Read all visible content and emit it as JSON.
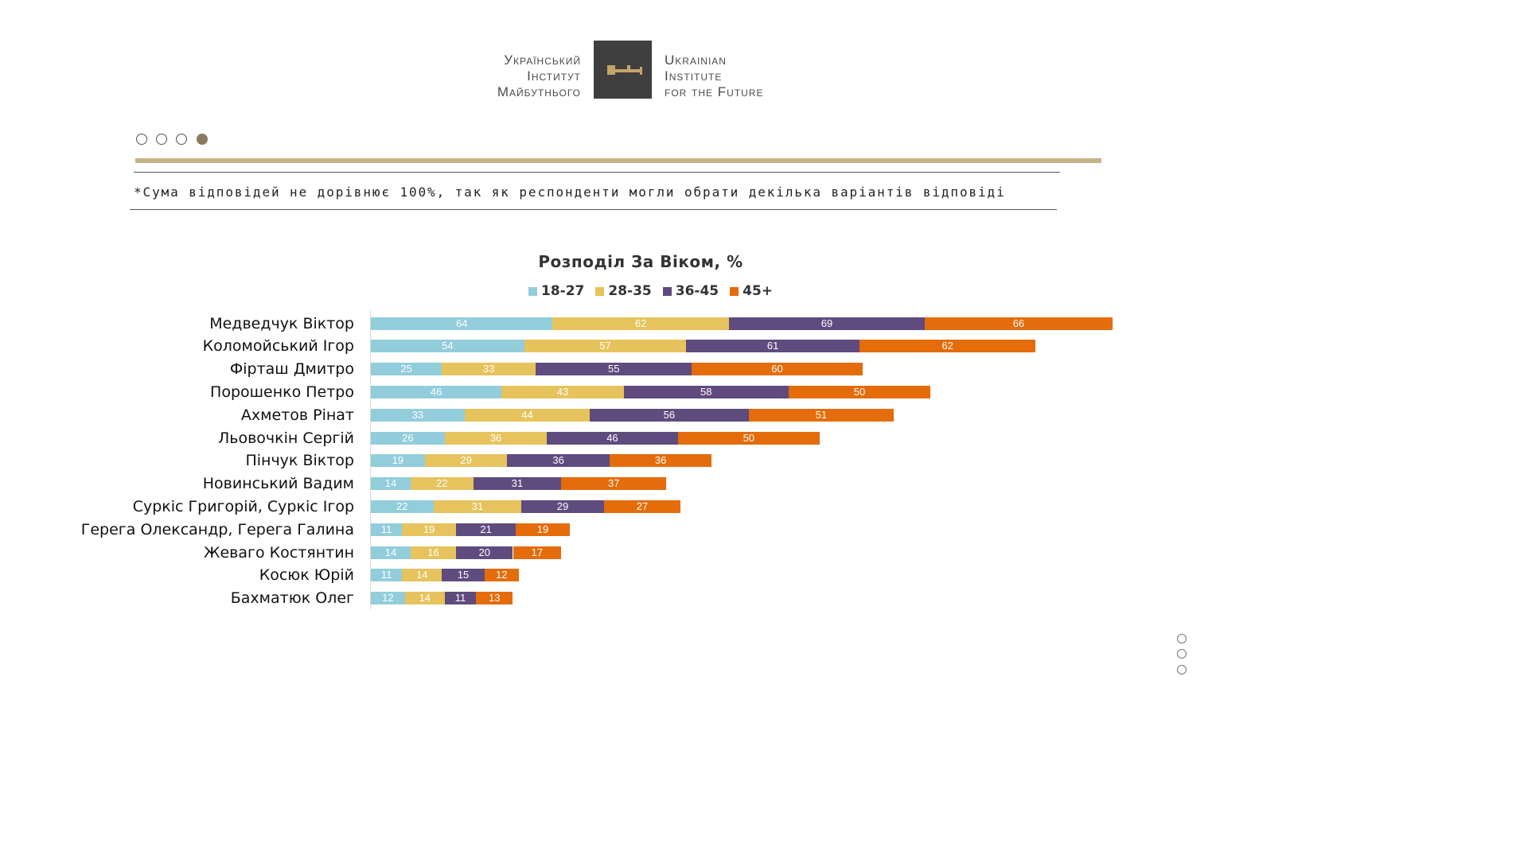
{
  "logo": {
    "uk_lines": [
      "Український",
      "Інститут",
      "Майбутнього"
    ],
    "en_lines": [
      "Ukrainian",
      "Institute",
      "for the Future"
    ],
    "icon": "key-icon"
  },
  "pagination": {
    "count": 4,
    "active": 3
  },
  "footnote": "*Сума відповідей не дорівнює 100%, так як респонденти могли обрати декілька варіантів відповіді",
  "colors": {
    "accent": "#c5b38a",
    "dark": "#3f3f3f"
  },
  "side_pagination": {
    "count": 3
  },
  "chart_data": {
    "type": "bar",
    "orientation": "horizontal",
    "stacked": true,
    "title": "Розподіл За Віком, %",
    "categories": [
      "Медведчук Віктор",
      "Коломойський Ігор",
      "Фірташ Дмитро",
      "Порошенко Петро",
      "Ахметов Рінат",
      "Льовочкін Сергій",
      "Пінчук Віктор",
      "Новинський Вадим",
      "Суркіс Григорій, Суркіс Ігор",
      "Герега Олександр, Герега Галина",
      "Жеваго Костянтин",
      "Косюк Юрій",
      "Бахматюк Олег"
    ],
    "series": [
      {
        "name": "18-27",
        "color": "#92cddc",
        "values": [
          64,
          54,
          25,
          46,
          33,
          26,
          19,
          14,
          22,
          11,
          14,
          11,
          12
        ]
      },
      {
        "name": "28-35",
        "color": "#e6c35c",
        "values": [
          62,
          57,
          33,
          43,
          44,
          36,
          29,
          22,
          31,
          19,
          16,
          14,
          14
        ]
      },
      {
        "name": "36-45",
        "color": "#5f4b7e",
        "values": [
          69,
          61,
          55,
          58,
          56,
          46,
          36,
          31,
          29,
          21,
          20,
          15,
          11
        ]
      },
      {
        "name": "45+",
        "color": "#e46c0a",
        "values": [
          66,
          62,
          60,
          50,
          51,
          50,
          36,
          37,
          27,
          19,
          17,
          12,
          13
        ]
      }
    ],
    "legend_position": "top",
    "grid": false
  }
}
